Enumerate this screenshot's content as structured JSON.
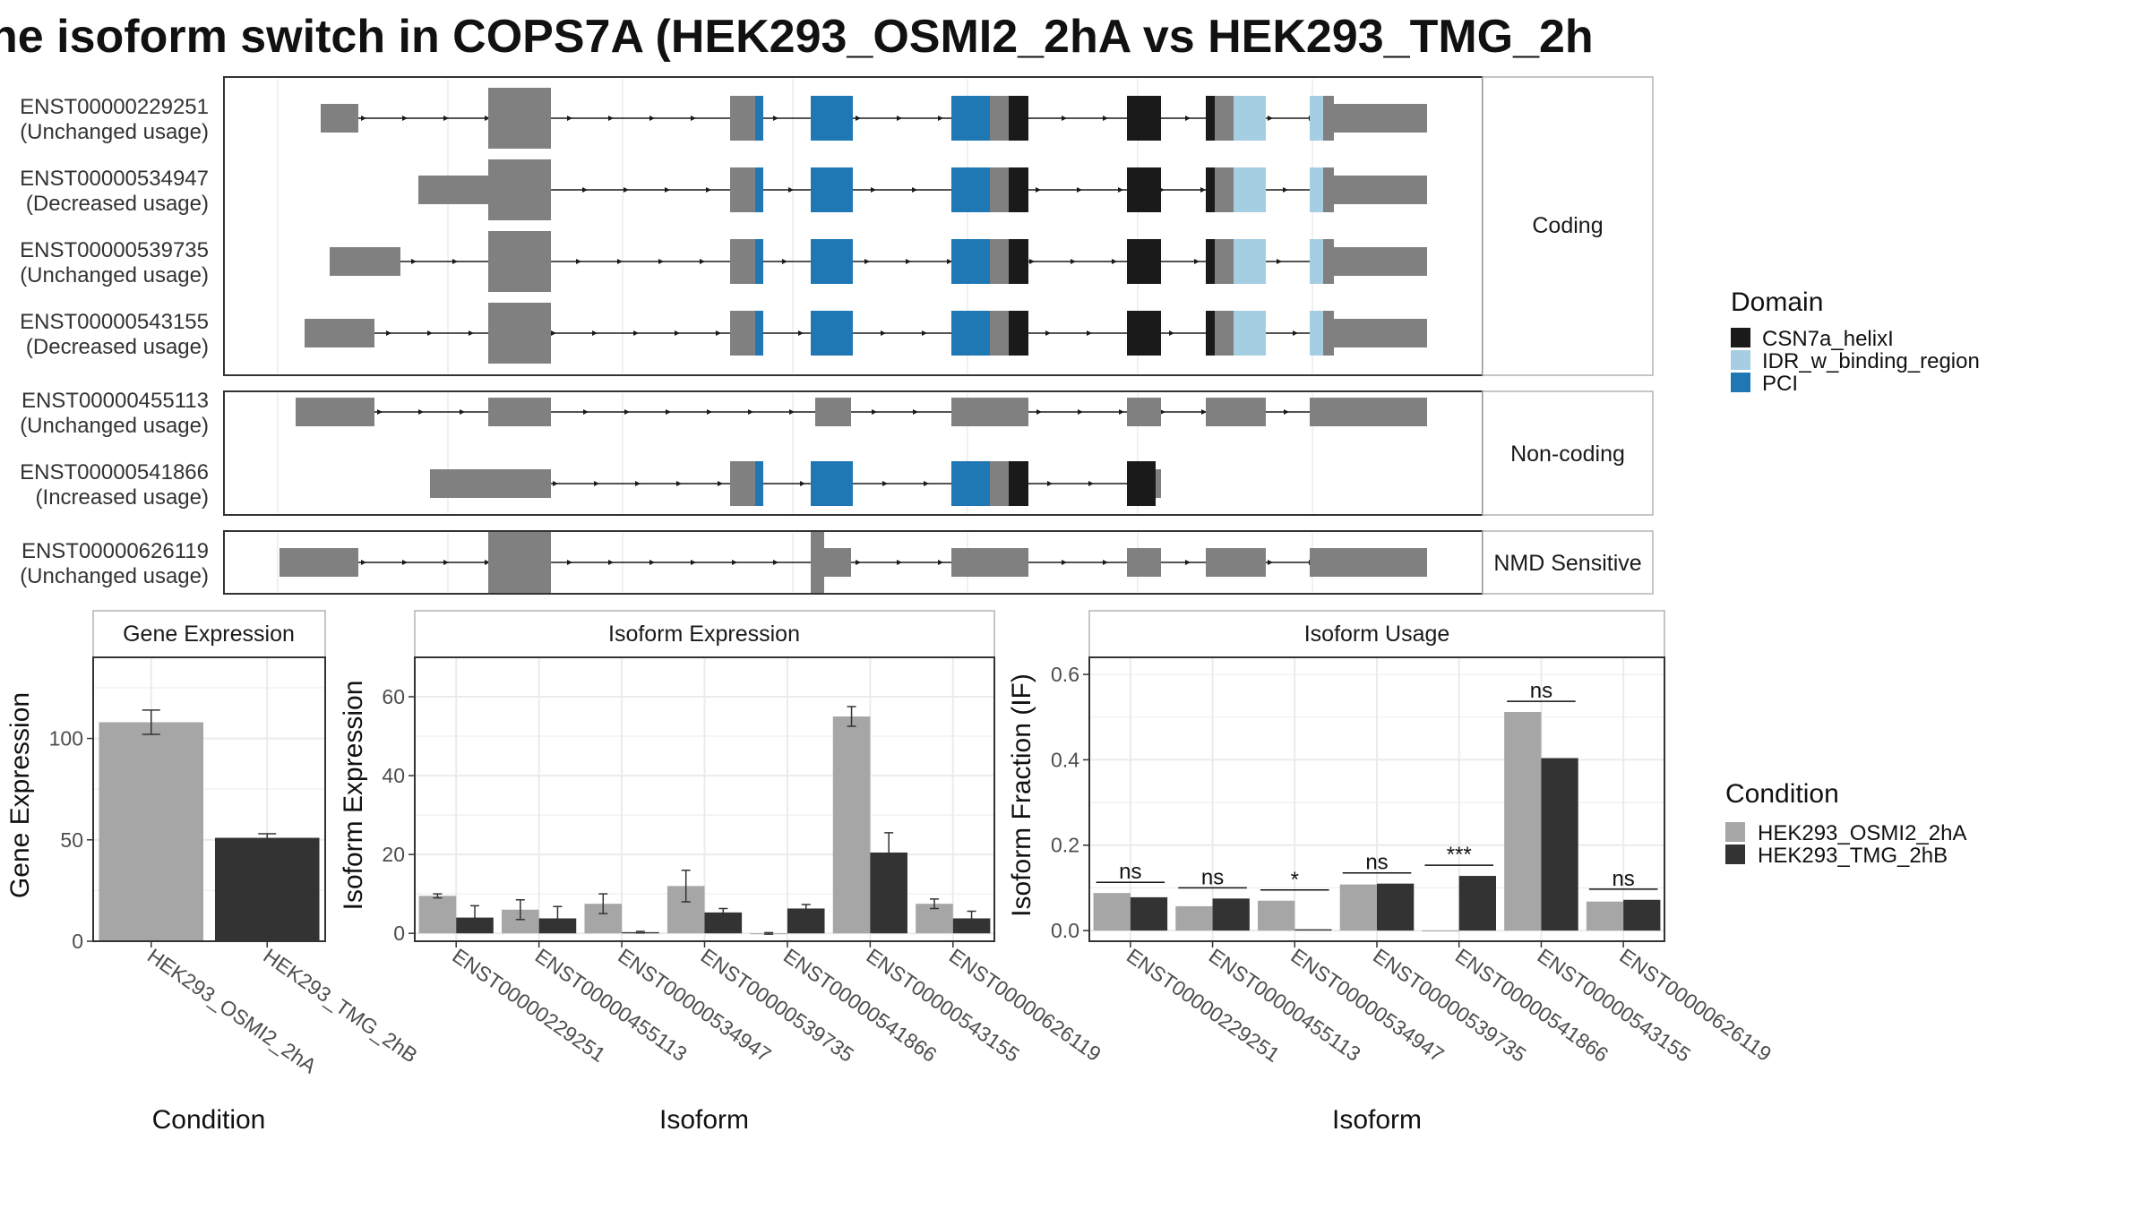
{
  "title": "ne isoform switch in COPS7A (HEK293_OSMI2_2hA vs HEK293_TMG_2h",
  "colors": {
    "utr": "#808080",
    "CSN7a_helixI": "#1a1a1a",
    "IDR_w_binding_region": "#a6cee3",
    "PCI": "#1f78b4",
    "cond1": "#a6a6a6",
    "cond2": "#333333",
    "panel_border": "#333333",
    "strip_border": "#b3b3b3",
    "grid": "#ebebeb"
  },
  "structure": {
    "groups": [
      {
        "label": "Coding",
        "isoforms": [
          {
            "id": "ENST00000229251",
            "usage": "(Unchanged usage)"
          },
          {
            "id": "ENST00000534947",
            "usage": "(Decreased usage)"
          },
          {
            "id": "ENST00000539735",
            "usage": "(Unchanged usage)"
          },
          {
            "id": "ENST00000543155",
            "usage": "(Decreased usage)"
          }
        ]
      },
      {
        "label": "Non-coding",
        "isoforms": [
          {
            "id": "ENST00000455113",
            "usage": "(Unchanged usage)"
          },
          {
            "id": "ENST00000541866",
            "usage": "(Increased usage)"
          }
        ]
      },
      {
        "label": "NMD Sensitive",
        "isoforms": [
          {
            "id": "ENST00000626119",
            "usage": "(Unchanged usage)"
          }
        ]
      }
    ],
    "domain_legend": {
      "title": "Domain",
      "items": [
        "CSN7a_helixI",
        "IDR_w_binding_region",
        "PCI"
      ]
    }
  },
  "chart_data": [
    {
      "type": "bar",
      "title": "Gene Expression",
      "xlabel": "Condition",
      "ylabel": "Gene Expression",
      "ylim": [
        0,
        140
      ],
      "yticks": [
        "0",
        "50",
        "100"
      ],
      "categories": [
        "HEK293_OSMI2_2hA",
        "HEK293_TMG_2hB"
      ],
      "values": [
        108,
        51
      ],
      "errors": [
        6,
        2
      ]
    },
    {
      "type": "bar",
      "title": "Isoform Expression",
      "xlabel": "Isoform",
      "ylabel": "Isoform Expression",
      "ylim": [
        -2,
        70
      ],
      "yticks": [
        "0",
        "20",
        "40",
        "60"
      ],
      "categories": [
        "ENST00000229251",
        "ENST00000455113",
        "ENST00000534947",
        "ENST00000539735",
        "ENST00000541866",
        "ENST00000543155",
        "ENST00000626119"
      ],
      "series": [
        {
          "name": "HEK293_OSMI2_2hA",
          "values": [
            9.5,
            6,
            7.5,
            12,
            0,
            55,
            7.5
          ],
          "errors": [
            0.5,
            2.5,
            2.5,
            4,
            0.2,
            2.5,
            1.2
          ]
        },
        {
          "name": "HEK293_TMG_2hB",
          "values": [
            4,
            3.8,
            0.3,
            5.3,
            6.3,
            20.5,
            3.8
          ],
          "errors": [
            3,
            3,
            0.2,
            1,
            1,
            5,
            1.8
          ]
        }
      ]
    },
    {
      "type": "bar",
      "title": "Isoform Usage",
      "xlabel": "Isoform",
      "ylabel": "Isoform Fraction (IF)",
      "ylim": [
        -0.025,
        0.64
      ],
      "yticks": [
        "0.0",
        "0.2",
        "0.4",
        "0.6"
      ],
      "categories": [
        "ENST00000229251",
        "ENST00000455113",
        "ENST00000534947",
        "ENST00000539735",
        "ENST00000541866",
        "ENST00000543155",
        "ENST00000626119"
      ],
      "series": [
        {
          "name": "HEK293_OSMI2_2hA",
          "values": [
            0.088,
            0.057,
            0.07,
            0.108,
            0.0,
            0.512,
            0.068
          ]
        },
        {
          "name": "HEK293_TMG_2hB",
          "values": [
            0.078,
            0.075,
            0.003,
            0.11,
            0.128,
            0.404,
            0.072
          ]
        }
      ],
      "significance": [
        "ns",
        "ns",
        "*",
        "ns",
        "***",
        "ns",
        "ns"
      ]
    }
  ],
  "condition_legend": {
    "title": "Condition",
    "items": [
      "HEK293_OSMI2_2hA",
      "HEK293_TMG_2hB"
    ]
  }
}
